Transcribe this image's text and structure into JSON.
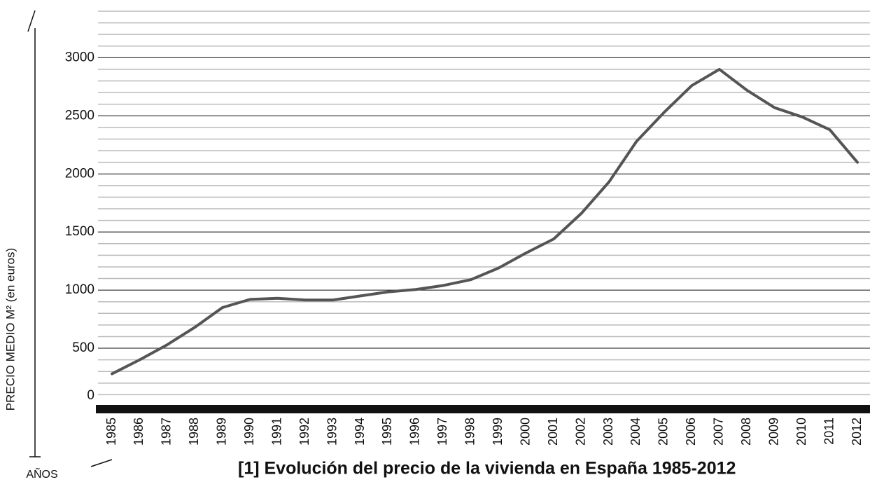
{
  "chart_data": {
    "type": "line",
    "title": "[1] Evolución del precio de la vivienda en España 1985-2012",
    "y_label": "PRECIO MEDIO M² (en euros)",
    "x_label": "AÑOS",
    "x": [
      1985,
      1986,
      1987,
      1988,
      1989,
      1990,
      1991,
      1992,
      1993,
      1994,
      1995,
      1996,
      1997,
      1998,
      1999,
      2000,
      2001,
      2002,
      2003,
      2004,
      2005,
      2006,
      2007,
      2008,
      2009,
      2010,
      2011,
      2012
    ],
    "series": [
      {
        "name": "Precio medio",
        "color": "#555555",
        "values": [
          280,
          400,
          530,
          680,
          850,
          920,
          930,
          915,
          915,
          950,
          985,
          1005,
          1040,
          1090,
          1190,
          1320,
          1440,
          1660,
          1930,
          2280,
          2530,
          2760,
          2900,
          2720,
          2570,
          2490,
          2380,
          2100
        ]
      }
    ],
    "xlim": [
      1985,
      2012
    ],
    "ylim": [
      0,
      3400
    ],
    "yticks": [
      0,
      500,
      1000,
      1500,
      2000,
      2500,
      3000
    ],
    "minor_yticks": [
      100,
      200,
      300,
      400,
      600,
      700,
      800,
      900,
      1100,
      1200,
      1300,
      1400,
      1600,
      1700,
      1800,
      1900,
      2100,
      2200,
      2300,
      2400,
      2600,
      2700,
      2800,
      2900,
      3100,
      3200,
      3300,
      3400
    ],
    "grid": true
  }
}
